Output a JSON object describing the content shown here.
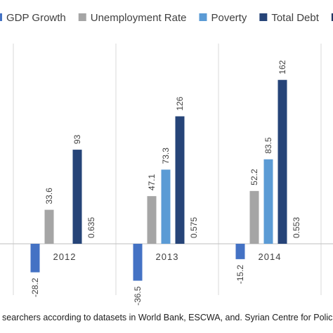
{
  "chart_data": {
    "type": "bar",
    "categories": [
      "2012",
      "2013",
      "2014"
    ],
    "series": [
      {
        "name": "GDP Growth",
        "color": "#4472C4",
        "values": [
          -28.2,
          -36.5,
          -15.2
        ],
        "labels": [
          "-28.2",
          "-36.5",
          "-15.2"
        ]
      },
      {
        "name": "Unemployment Rate",
        "color": "#A5A5A5",
        "values": [
          33.6,
          47.1,
          52.2
        ],
        "labels": [
          "33.6",
          "47.1",
          "52.2"
        ]
      },
      {
        "name": "Poverty",
        "color": "#5B9BD5",
        "values": [
          null,
          73.3,
          83.5
        ],
        "labels": [
          "",
          "73.3",
          "83.5"
        ]
      },
      {
        "name": "Total Debt",
        "color": "#264478",
        "values": [
          93,
          126,
          162
        ],
        "labels": [
          "93",
          "126",
          "162"
        ]
      },
      {
        "name": "H",
        "color": "#203864",
        "values": [
          0.635,
          0.575,
          0.553
        ],
        "labels": [
          "0.635",
          "0.575",
          "0.553"
        ]
      }
    ],
    "legend_position": "top",
    "grid": false
  },
  "source_note": "searchers according to datasets in World Bank, ESCWA, and. Syrian Centre for Polic"
}
